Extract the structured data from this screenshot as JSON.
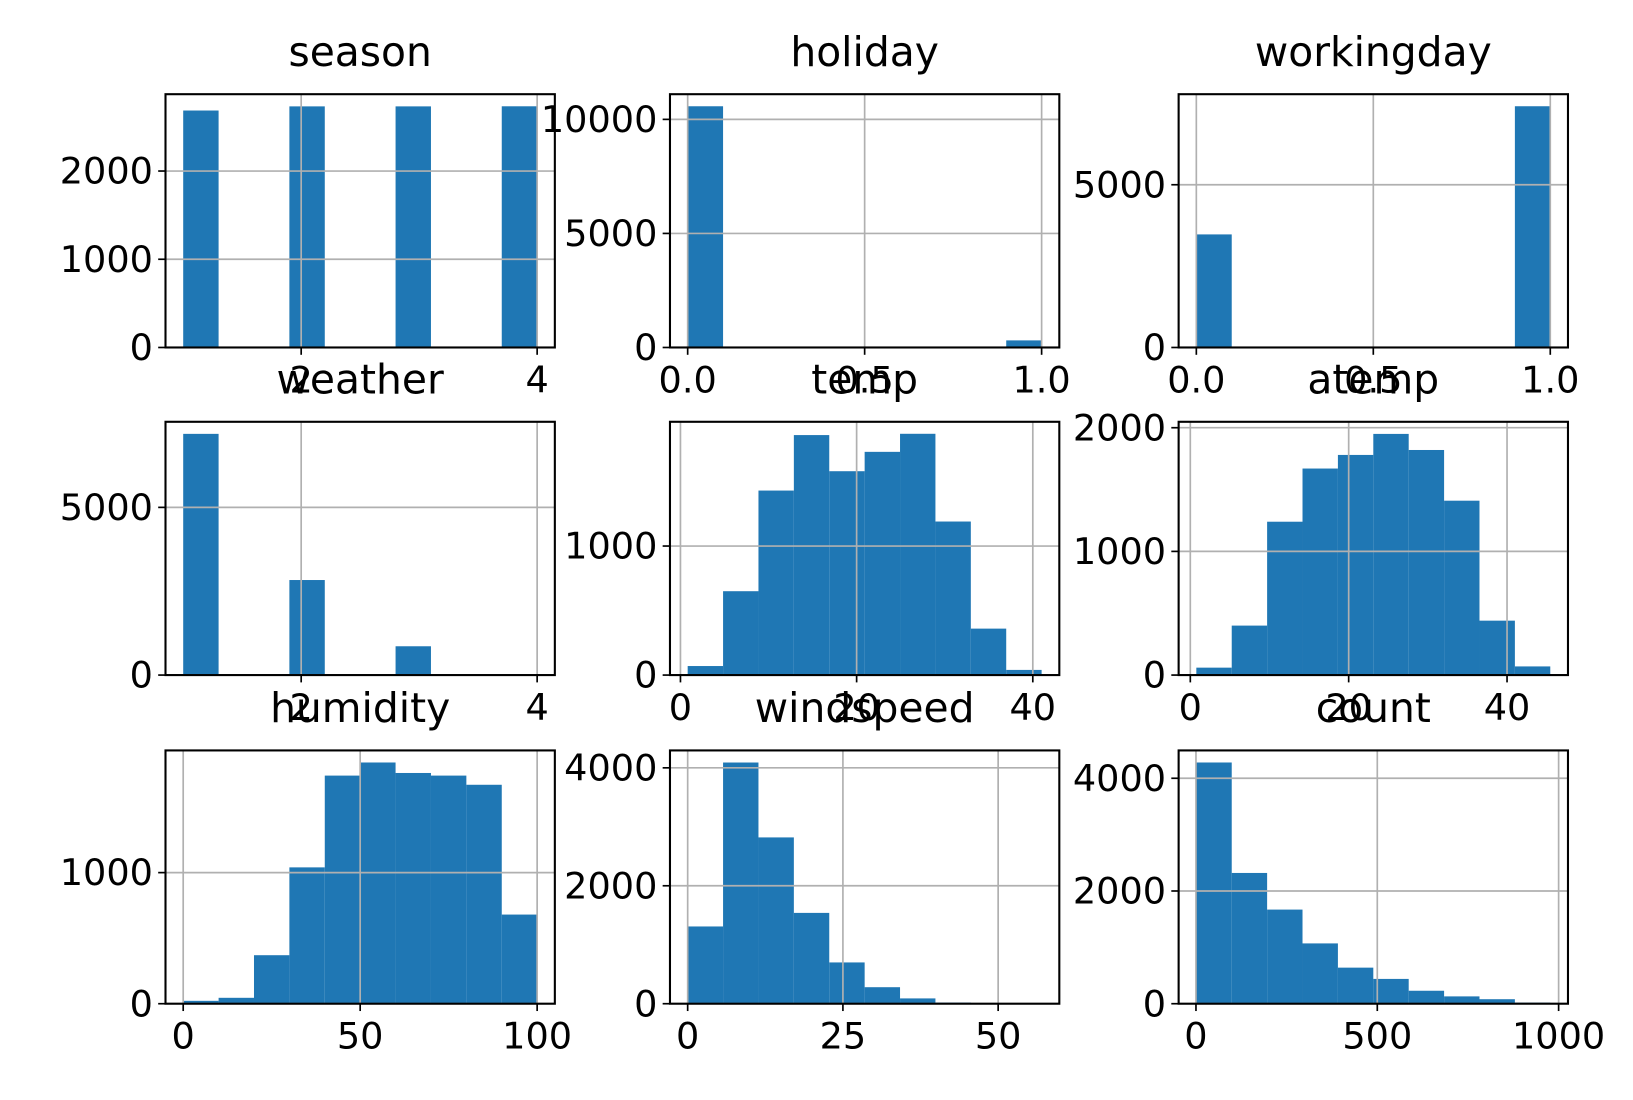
{
  "chart_data": [
    {
      "type": "histogram",
      "title": "season",
      "color": "#1f77b4",
      "grid": true,
      "bins": [
        1,
        1.3,
        1.6,
        1.9,
        2.2,
        2.5,
        2.8,
        3.1,
        3.4,
        3.7,
        4
      ],
      "counts": [
        2686,
        0,
        0,
        2733,
        0,
        0,
        2733,
        0,
        0,
        2734
      ],
      "xlim": [
        0.85,
        4.15
      ],
      "ylim": [
        0,
        2871
      ],
      "xticks": [
        2,
        4
      ],
      "yticks": [
        0,
        1000,
        2000
      ]
    },
    {
      "type": "histogram",
      "title": "holiday",
      "color": "#1f77b4",
      "grid": true,
      "bins": [
        0,
        0.1,
        0.2,
        0.3,
        0.4,
        0.5,
        0.6,
        0.7,
        0.8,
        0.9,
        1
      ],
      "counts": [
        10575,
        0,
        0,
        0,
        0,
        0,
        0,
        0,
        0,
        311
      ],
      "xlim": [
        -0.05,
        1.05
      ],
      "ylim": [
        0,
        11104
      ],
      "xticks": [
        {
          "value": 0,
          "label": "0.0"
        },
        0.5,
        {
          "value": 1,
          "label": "1.0"
        }
      ],
      "yticks": [
        0,
        5000,
        10000
      ]
    },
    {
      "type": "histogram",
      "title": "workingday",
      "color": "#1f77b4",
      "grid": true,
      "bins": [
        0,
        0.1,
        0.2,
        0.3,
        0.4,
        0.5,
        0.6,
        0.7,
        0.8,
        0.9,
        1
      ],
      "counts": [
        3474,
        0,
        0,
        0,
        0,
        0,
        0,
        0,
        0,
        7412
      ],
      "xlim": [
        -0.05,
        1.05
      ],
      "ylim": [
        0,
        7782
      ],
      "xticks": [
        {
          "value": 0,
          "label": "0.0"
        },
        0.5,
        {
          "value": 1,
          "label": "1.0"
        }
      ],
      "yticks": [
        0,
        5000
      ]
    },
    {
      "type": "histogram",
      "title": "weather",
      "color": "#1f77b4",
      "grid": true,
      "bins": [
        1,
        1.3,
        1.6,
        1.9,
        2.2,
        2.5,
        2.8,
        3.1,
        3.4,
        3.7,
        4
      ],
      "counts": [
        7192,
        0,
        0,
        2834,
        0,
        0,
        859,
        0,
        0,
        1
      ],
      "xlim": [
        0.85,
        4.15
      ],
      "ylim": [
        0,
        7552
      ],
      "xticks": [
        2,
        4
      ],
      "yticks": [
        0,
        5000
      ]
    },
    {
      "type": "histogram",
      "title": "temp",
      "color": "#1f77b4",
      "grid": true,
      "bins": [
        0.82,
        4.838,
        8.856,
        12.874,
        16.892,
        20.91,
        24.928,
        28.946,
        32.964,
        36.982,
        41.0
      ],
      "counts": [
        70,
        650,
        1430,
        1860,
        1580,
        1730,
        1870,
        1190,
        360,
        40
      ],
      "xlim": [
        -1.19,
        43.01
      ],
      "ylim": [
        0,
        1963
      ],
      "xticks": [
        0,
        20,
        40
      ],
      "yticks": [
        0,
        1000
      ]
    },
    {
      "type": "histogram",
      "title": "atemp",
      "color": "#1f77b4",
      "grid": true,
      "bins": [
        0.76,
        5.23,
        9.7,
        14.17,
        18.64,
        23.11,
        27.58,
        32.05,
        36.52,
        40.99,
        45.46
      ],
      "counts": [
        60,
        400,
        1240,
        1670,
        1780,
        1950,
        1820,
        1410,
        440,
        70
      ],
      "xlim": [
        -1.475,
        47.695
      ],
      "ylim": [
        0,
        2048
      ],
      "xticks": [
        0,
        20,
        40
      ],
      "yticks": [
        0,
        1000,
        2000
      ]
    },
    {
      "type": "histogram",
      "title": "humidity",
      "color": "#1f77b4",
      "grid": true,
      "bins": [
        0,
        10,
        20,
        30,
        40,
        50,
        60,
        70,
        80,
        90,
        100
      ],
      "counts": [
        22,
        45,
        370,
        1040,
        1740,
        1840,
        1760,
        1740,
        1670,
        680
      ],
      "xlim": [
        -5,
        105
      ],
      "ylim": [
        0,
        1932
      ],
      "xticks": [
        0,
        50,
        100
      ],
      "yticks": [
        0,
        1000
      ]
    },
    {
      "type": "histogram",
      "title": "windspeed",
      "color": "#1f77b4",
      "grid": true,
      "bins": [
        0,
        5.7,
        11.4,
        17.1,
        22.8,
        28.5,
        34.2,
        39.9,
        45.6,
        51.3,
        57.0
      ],
      "counts": [
        1310,
        4090,
        2820,
        1540,
        700,
        280,
        90,
        20,
        5,
        2
      ],
      "xlim": [
        -2.85,
        59.85
      ],
      "ylim": [
        0,
        4295
      ],
      "xticks": [
        0,
        25,
        50
      ],
      "yticks": [
        0,
        2000,
        4000
      ]
    },
    {
      "type": "histogram",
      "title": "count",
      "color": "#1f77b4",
      "grid": true,
      "bins": [
        1,
        98.6,
        196.2,
        293.8,
        391.4,
        489,
        586.6,
        684.2,
        781.8,
        879.4,
        977
      ],
      "counts": [
        4280,
        2320,
        1670,
        1070,
        640,
        440,
        230,
        130,
        80,
        20
      ],
      "xlim": [
        -47.8,
        1025.8
      ],
      "ylim": [
        0,
        4494
      ],
      "xticks": [
        0,
        500,
        1000
      ],
      "yticks": [
        0,
        2000,
        4000
      ]
    }
  ]
}
